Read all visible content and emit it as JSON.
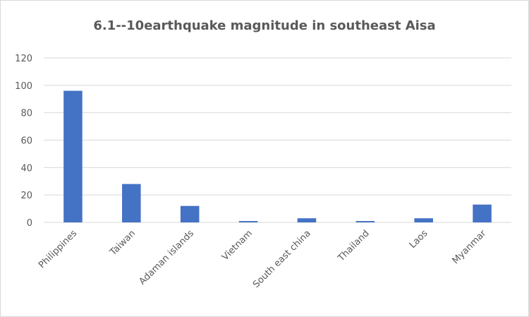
{
  "chart_data": {
    "type": "bar",
    "title": "6.1--10earthquake magnitude in southeast Aisa",
    "categories": [
      "Philippines",
      "Taiwan",
      "Adaman islands",
      "Vietnam",
      "South east china",
      "Thailand",
      "Laos",
      "Myanmar"
    ],
    "values": [
      96,
      28,
      12,
      1,
      3,
      1,
      3,
      13
    ],
    "color": "#4472c4",
    "ylim": [
      0,
      120
    ],
    "yticks": [
      0,
      20,
      40,
      60,
      80,
      100,
      120
    ],
    "grid": true
  }
}
